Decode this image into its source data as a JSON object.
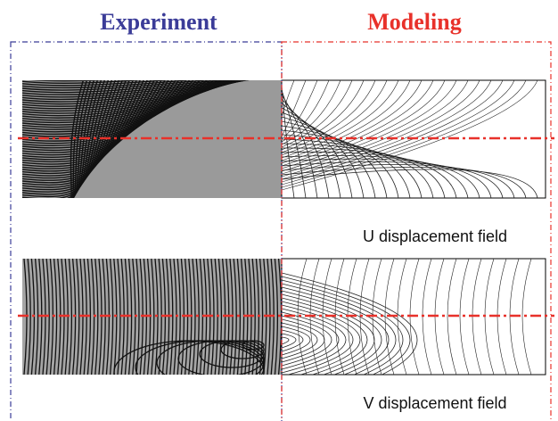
{
  "header": {
    "left_title": "Experiment",
    "right_title": "Modeling"
  },
  "captions": {
    "u": "U displacement field",
    "v": "V displacement field"
  }
}
